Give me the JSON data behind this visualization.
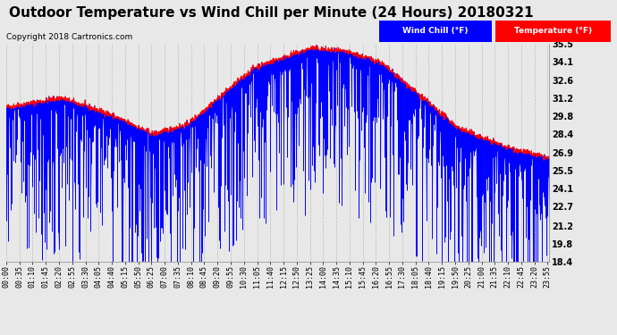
{
  "title": "Outdoor Temperature vs Wind Chill per Minute (24 Hours) 20180321",
  "copyright": "Copyright 2018 Cartronics.com",
  "ylabel_right_ticks": [
    18.4,
    19.8,
    21.2,
    22.7,
    24.1,
    25.5,
    26.9,
    28.4,
    29.8,
    31.2,
    32.6,
    34.1,
    35.5
  ],
  "ymin": 18.4,
  "ymax": 35.5,
  "bg_color": "#e8e8e8",
  "plot_bg_color": "#e8e8e8",
  "temp_color": "#ff0000",
  "wind_chill_color": "#0000ff",
  "legend_wind_chill_bg": "#0000ff",
  "legend_temp_bg": "#ff0000",
  "title_fontsize": 11,
  "copyright_fontsize": 6.5,
  "tick_fontsize": 6,
  "tick_interval_minutes": 35
}
